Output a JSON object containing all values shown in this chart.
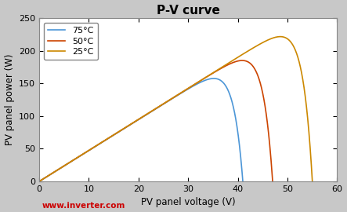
{
  "title": "P-V curve",
  "xlabel": "PV panel voltage (V)",
  "ylabel": "PV panel power (W)",
  "xlim": [
    0,
    60
  ],
  "ylim": [
    0,
    250
  ],
  "xticks": [
    0,
    10,
    20,
    30,
    40,
    50,
    60
  ],
  "yticks": [
    0,
    50,
    100,
    150,
    200,
    250
  ],
  "curves": [
    {
      "label": "75°C",
      "color": "#4C96D7",
      "voc": 41.0,
      "vmp": 32.0,
      "pmp": 150,
      "sharp": 1.5
    },
    {
      "label": "50°C",
      "color": "#CC4400",
      "voc": 47.0,
      "vmp": 40.5,
      "pmp": 185,
      "sharp": 1.5
    },
    {
      "label": "25°C",
      "color": "#CC8800",
      "voc": 55.0,
      "vmp": 46.5,
      "pmp": 218,
      "sharp": 1.5
    }
  ],
  "watermark_text": "www.inverter.com",
  "watermark_color": "#CC0000",
  "figure_facecolor": "#C8C8C8",
  "axes_facecolor": "#FFFFFF",
  "legend_loc": "upper left"
}
